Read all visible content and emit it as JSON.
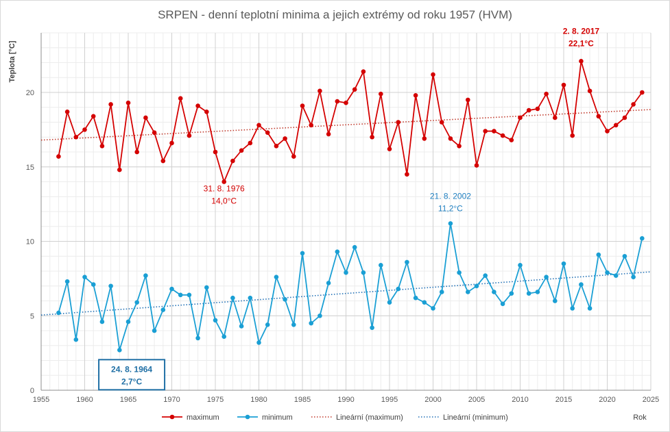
{
  "chart_data": {
    "type": "line",
    "title": "SRPEN - denní teplotní minima a jejich extrémy od roku 1957 (HVM)",
    "ylabel": "Teplota [°C]",
    "xlabel": "Rok",
    "xlim": [
      1955,
      2025
    ],
    "ylim": [
      0,
      24
    ],
    "xticks": [
      1955,
      1960,
      1965,
      1970,
      1975,
      1980,
      1985,
      1990,
      1995,
      2000,
      2005,
      2010,
      2015,
      2020,
      2025
    ],
    "yticks": [
      0,
      5,
      10,
      15,
      20
    ],
    "grid": true,
    "legend_position": "bottom",
    "x": [
      1957,
      1958,
      1959,
      1960,
      1961,
      1962,
      1963,
      1964,
      1965,
      1966,
      1967,
      1968,
      1969,
      1970,
      1971,
      1972,
      1973,
      1974,
      1975,
      1976,
      1977,
      1978,
      1979,
      1980,
      1981,
      1982,
      1983,
      1984,
      1985,
      1986,
      1987,
      1988,
      1989,
      1990,
      1991,
      1992,
      1993,
      1994,
      1995,
      1996,
      1997,
      1998,
      1999,
      2000,
      2001,
      2002,
      2003,
      2004,
      2005,
      2006,
      2007,
      2008,
      2009,
      2010,
      2011,
      2012,
      2013,
      2014,
      2015,
      2016,
      2017,
      2018,
      2019,
      2020,
      2021,
      2022,
      2023,
      2024
    ],
    "series": [
      {
        "name": "maximum",
        "color": "#d40000",
        "values": [
          15.7,
          18.7,
          17.0,
          17.5,
          18.4,
          16.4,
          19.2,
          14.8,
          19.3,
          16.0,
          18.3,
          17.3,
          15.4,
          16.6,
          19.6,
          17.1,
          19.1,
          18.7,
          16.0,
          14.0,
          15.4,
          16.1,
          16.6,
          17.8,
          17.3,
          16.4,
          16.9,
          15.7,
          19.1,
          17.8,
          20.1,
          17.2,
          19.4,
          19.3,
          20.2,
          21.4,
          17.0,
          19.9,
          16.2,
          18.0,
          14.5,
          19.8,
          16.9,
          21.2,
          18.0,
          16.9,
          16.4,
          19.5,
          15.1,
          17.4,
          17.4,
          17.1,
          16.8,
          18.3,
          18.8,
          18.9,
          19.9,
          18.3,
          20.5,
          17.1,
          22.1,
          20.1,
          18.4,
          17.4,
          17.8,
          18.3,
          19.2,
          20.0
        ]
      },
      {
        "name": "minimum",
        "color": "#1a9fd4",
        "values": [
          5.2,
          7.3,
          3.4,
          7.6,
          7.1,
          4.6,
          7.0,
          2.7,
          4.6,
          5.9,
          7.7,
          4.0,
          5.4,
          6.8,
          6.4,
          6.4,
          3.5,
          6.9,
          4.7,
          3.6,
          6.2,
          4.3,
          6.2,
          3.2,
          4.4,
          7.6,
          6.1,
          4.4,
          9.2,
          4.5,
          5.0,
          7.2,
          9.3,
          7.9,
          9.6,
          7.9,
          4.2,
          8.4,
          5.9,
          6.8,
          8.6,
          6.2,
          5.9,
          5.5,
          6.6,
          11.2,
          7.9,
          6.6,
          7.0,
          7.7,
          6.6,
          5.8,
          6.5,
          8.4,
          6.5,
          6.6,
          7.6,
          6.0,
          8.5,
          5.5,
          7.1,
          5.5,
          9.1,
          7.9,
          7.7,
          9.0,
          7.6,
          10.2
        ]
      },
      {
        "name": "Lineární (maximum)",
        "color": "#c0392b",
        "style": "dotted",
        "x": [
          1955,
          2025
        ],
        "values": [
          16.8,
          18.85
        ]
      },
      {
        "name": "Lineární (minimum)",
        "color": "#1f6fb5",
        "style": "dotted",
        "x": [
          1955,
          2025
        ],
        "values": [
          5.05,
          7.95
        ]
      }
    ],
    "annotations": [
      {
        "text1": "2. 8. 2017",
        "text2": "22,1°C",
        "x": 2017,
        "y": 22.1,
        "color": "#d40000",
        "bold": true
      },
      {
        "text1": "31. 8. 1976",
        "text2": "14,0°C",
        "x": 1976,
        "y": 14.0,
        "color": "#d40000",
        "bold": false
      },
      {
        "text1": "21. 8. 2002",
        "text2": "11,2°C",
        "x": 2002,
        "y": 11.2,
        "color": "#1f7fc0",
        "bold": false
      },
      {
        "text1": "24. 8. 1964",
        "text2": "2,7°C",
        "x": 1964,
        "y": 2.7,
        "color": "#1f6fa5",
        "bold": true,
        "boxed": true
      }
    ]
  }
}
